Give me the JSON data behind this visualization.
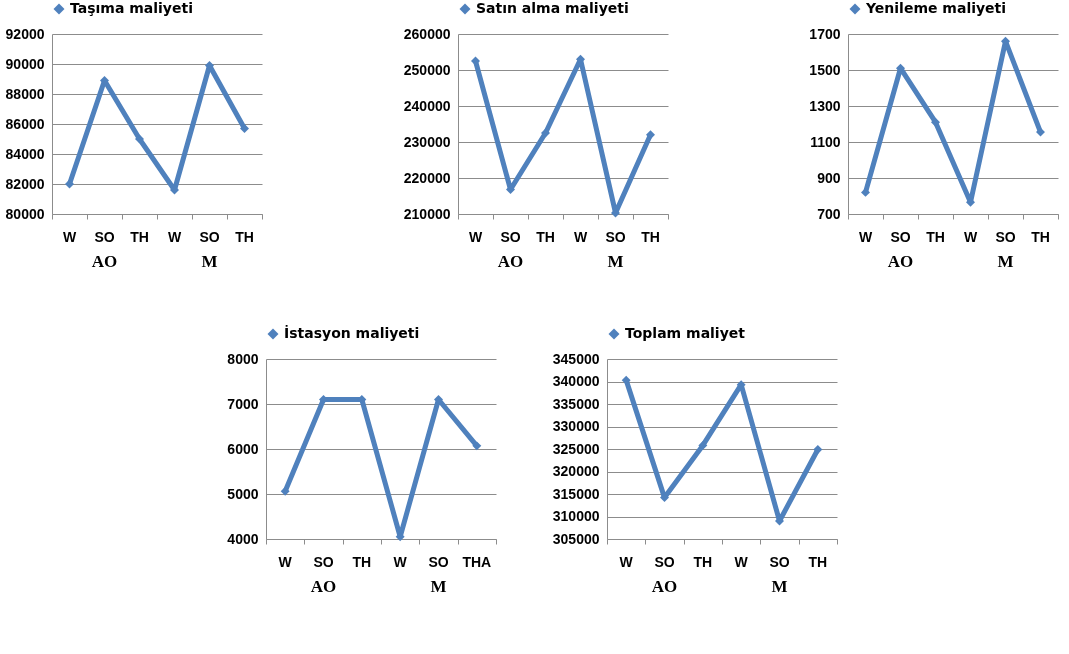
{
  "chart_data": [
    {
      "type": "line",
      "categories": [
        "W",
        "SO",
        "TH",
        "W",
        "SO",
        "TH"
      ],
      "series": [
        {
          "name": "Taşıma maliyeti",
          "color": "#4f81bd",
          "values": [
            82000,
            88900,
            85000,
            81600,
            89900,
            85700
          ]
        }
      ],
      "ylim": [
        80000,
        92000
      ],
      "yticks": [
        80000,
        82000,
        84000,
        86000,
        88000,
        90000,
        92000
      ],
      "grid": "y",
      "legend": "top",
      "marker": "diamond",
      "annotations": [
        "AO",
        "M"
      ]
    },
    {
      "type": "line",
      "categories": [
        "W",
        "SO",
        "TH",
        "W",
        "SO",
        "TH"
      ],
      "series": [
        {
          "name": "Satın alma maliyeti",
          "color": "#4f81bd",
          "values": [
            252500,
            216800,
            232500,
            253000,
            210300,
            232000
          ]
        }
      ],
      "ylim": [
        210000,
        260000
      ],
      "yticks": [
        210000,
        220000,
        230000,
        240000,
        250000,
        260000
      ],
      "grid": "y",
      "legend": "top",
      "marker": "diamond",
      "annotations": [
        "AO",
        "M"
      ]
    },
    {
      "type": "line",
      "categories": [
        "W",
        "SO",
        "TH",
        "W",
        "SO",
        "TH"
      ],
      "series": [
        {
          "name": "Yenileme maliyeti",
          "color": "#4f81bd",
          "values": [
            820,
            1510,
            1210,
            765,
            1660,
            1155
          ]
        }
      ],
      "ylim": [
        700,
        1700
      ],
      "yticks": [
        700,
        900,
        1100,
        1300,
        1500,
        1700
      ],
      "grid": "y",
      "legend": "top",
      "marker": "diamond",
      "annotations": [
        "AO",
        "M"
      ]
    },
    {
      "type": "line",
      "categories": [
        "W",
        "SO",
        "TH",
        "W",
        "SO",
        "THA"
      ],
      "series": [
        {
          "name": "İstasyon maliyeti",
          "color": "#4f81bd",
          "values": [
            5060,
            7100,
            7100,
            4050,
            7100,
            6070
          ]
        }
      ],
      "ylim": [
        4000,
        8000
      ],
      "yticks": [
        4000,
        5000,
        6000,
        7000,
        8000
      ],
      "grid": "y",
      "legend": "top",
      "marker": "diamond",
      "annotations": [
        "AO",
        "M"
      ]
    },
    {
      "type": "line",
      "categories": [
        "W",
        "SO",
        "TH",
        "W",
        "SO",
        "TH"
      ],
      "series": [
        {
          "name": "Toplam maliyet",
          "color": "#4f81bd",
          "values": [
            340300,
            314200,
            325800,
            339300,
            309000,
            324900
          ]
        }
      ],
      "ylim": [
        305000,
        345000
      ],
      "yticks": [
        305000,
        310000,
        315000,
        320000,
        325000,
        330000,
        335000,
        340000,
        345000
      ],
      "grid": "y",
      "legend": "top",
      "marker": "diamond",
      "annotations": [
        "AO",
        "M"
      ]
    }
  ]
}
